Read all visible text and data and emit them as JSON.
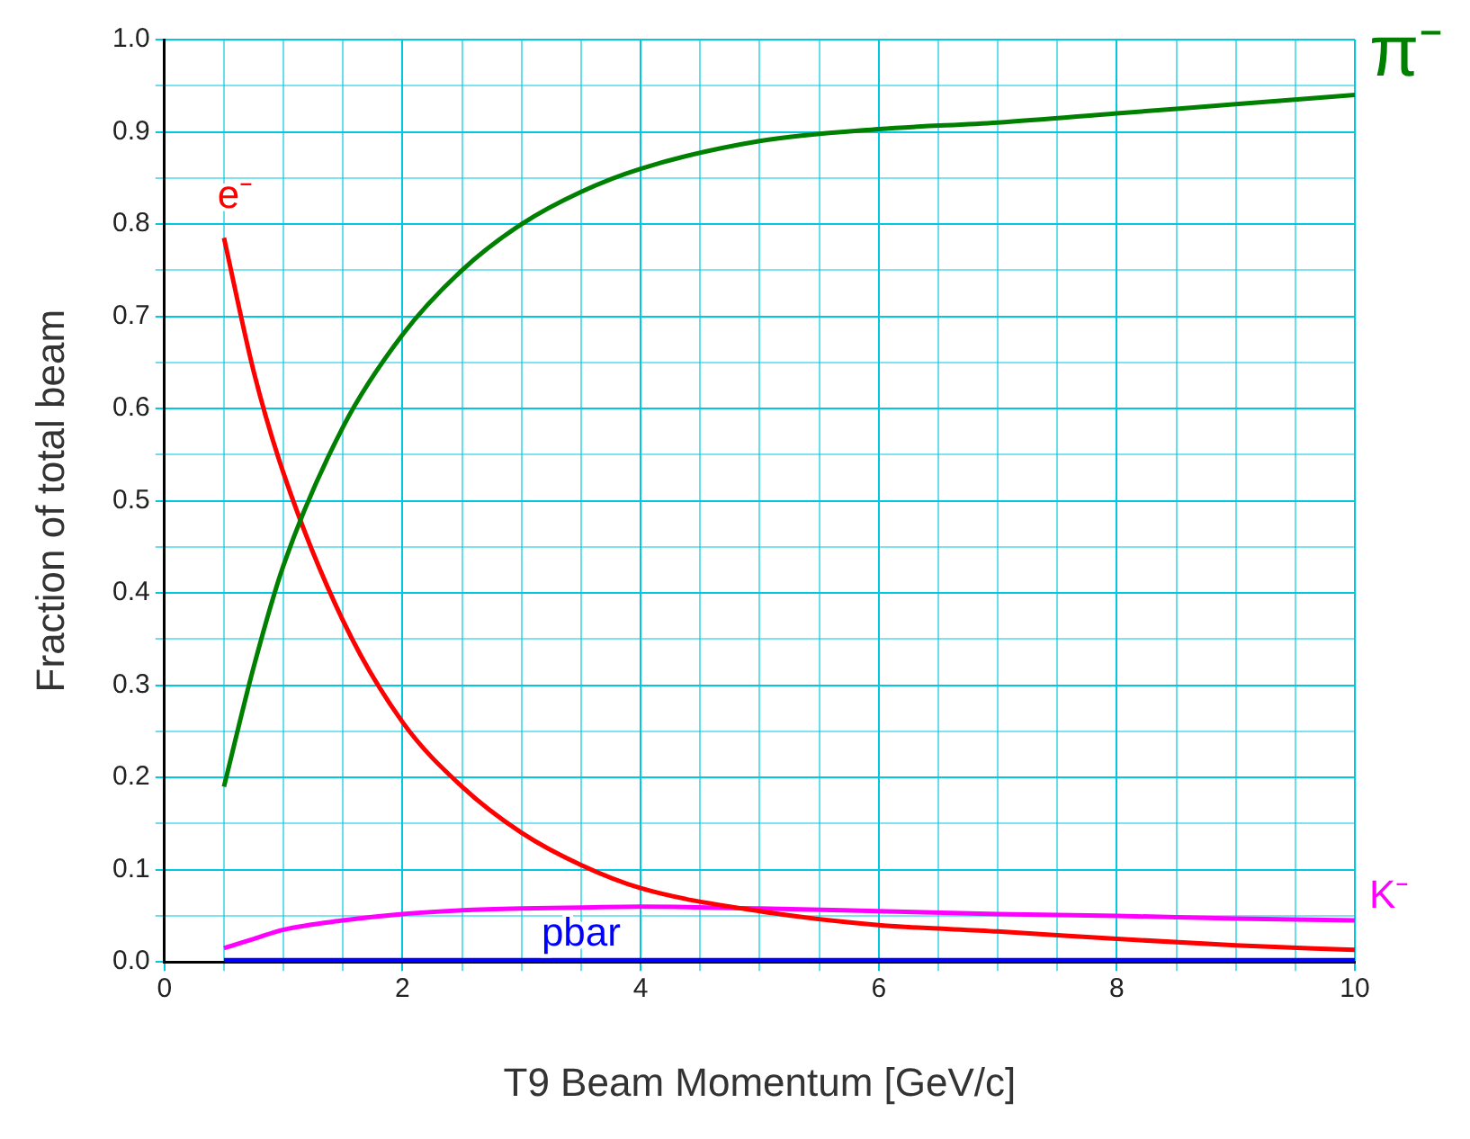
{
  "chart_data": {
    "type": "line",
    "xlabel": "T9 Beam Momentum [GeV/c]",
    "ylabel": "Fraction of total beam",
    "xlim": [
      0,
      10
    ],
    "ylim": [
      0,
      1
    ],
    "xticks": [
      0,
      {
        "value": 0.5,
        "label": null
      },
      {
        "value": 1,
        "label": null
      },
      {
        "value": 1.5,
        "label": null
      },
      2,
      {
        "value": 2.5,
        "label": null
      },
      {
        "value": 3,
        "label": null
      },
      {
        "value": 3.5,
        "label": null
      },
      4,
      {
        "value": 4.5,
        "label": null
      },
      {
        "value": 5,
        "label": null
      },
      {
        "value": 5.5,
        "label": null
      },
      6,
      {
        "value": 6.5,
        "label": null
      },
      {
        "value": 7,
        "label": null
      },
      {
        "value": 7.5,
        "label": null
      },
      8,
      {
        "value": 8.5,
        "label": null
      },
      {
        "value": 9,
        "label": null
      },
      {
        "value": 9.5,
        "label": null
      },
      10
    ],
    "yticks": [
      {
        "value": 0,
        "label": "0.0"
      },
      {
        "value": 0.1,
        "label": "0.1"
      },
      {
        "value": 0.2,
        "label": "0.2"
      },
      {
        "value": 0.3,
        "label": "0.3"
      },
      {
        "value": 0.4,
        "label": "0.4"
      },
      {
        "value": 0.5,
        "label": "0.5"
      },
      {
        "value": 0.6,
        "label": "0.6"
      },
      {
        "value": 0.7,
        "label": "0.7"
      },
      {
        "value": 0.8,
        "label": "0.8"
      },
      {
        "value": 0.9,
        "label": "0.9"
      },
      {
        "value": 1,
        "label": "1.0"
      },
      {
        "value": 0.05,
        "label": null
      },
      {
        "value": 0.15,
        "label": null
      },
      {
        "value": 0.25,
        "label": null
      },
      {
        "value": 0.35,
        "label": null
      },
      {
        "value": 0.45,
        "label": null
      },
      {
        "value": 0.55,
        "label": null
      },
      {
        "value": 0.65,
        "label": null
      },
      {
        "value": 0.75,
        "label": null
      },
      {
        "value": 0.85,
        "label": null
      },
      {
        "value": 0.95,
        "label": null
      }
    ],
    "grid": true,
    "legend": false,
    "marker": "none",
    "line_style": "solid",
    "x": [
      0.5,
      0.75,
      1,
      1.5,
      2,
      2.5,
      3,
      3.5,
      4,
      5,
      6,
      7,
      8,
      9,
      10
    ],
    "series": [
      {
        "color": "#008000",
        "values": [
          0.19,
          0.32,
          0.43,
          0.58,
          0.68,
          0.75,
          0.8,
          0.835,
          0.86,
          0.89,
          0.903,
          0.91,
          0.92,
          0.93,
          0.94
        ]
      },
      {
        "color": "#ff0000",
        "values": [
          0.785,
          0.64,
          0.53,
          0.37,
          0.26,
          0.19,
          0.14,
          0.105,
          0.08,
          0.055,
          0.04,
          0.033,
          0.025,
          0.018,
          0.013
        ]
      },
      {
        "color": "#ff00ff",
        "values": [
          0.015,
          0.025,
          0.035,
          0.045,
          0.052,
          0.056,
          0.058,
          0.059,
          0.06,
          0.058,
          0.055,
          0.052,
          0.05,
          0.047,
          0.045
        ]
      },
      {
        "color": "#0000ff",
        "values": [
          0.002,
          0.002,
          0.002,
          0.002,
          0.002,
          0.002,
          0.002,
          0.002,
          0.002,
          0.002,
          0.002,
          0.002,
          0.002,
          0.002,
          0.002
        ]
      }
    ],
    "annotations": [
      {
        "text": "π⁻",
        "x": 10,
        "y": 0.94
      },
      {
        "text": "e⁻",
        "x": 0.5,
        "y": 0.785
      },
      {
        "text": "K⁻",
        "x": 10,
        "y": 0.045
      },
      {
        "text": "pbar",
        "x": 3.5,
        "y": 0.002
      }
    ]
  }
}
